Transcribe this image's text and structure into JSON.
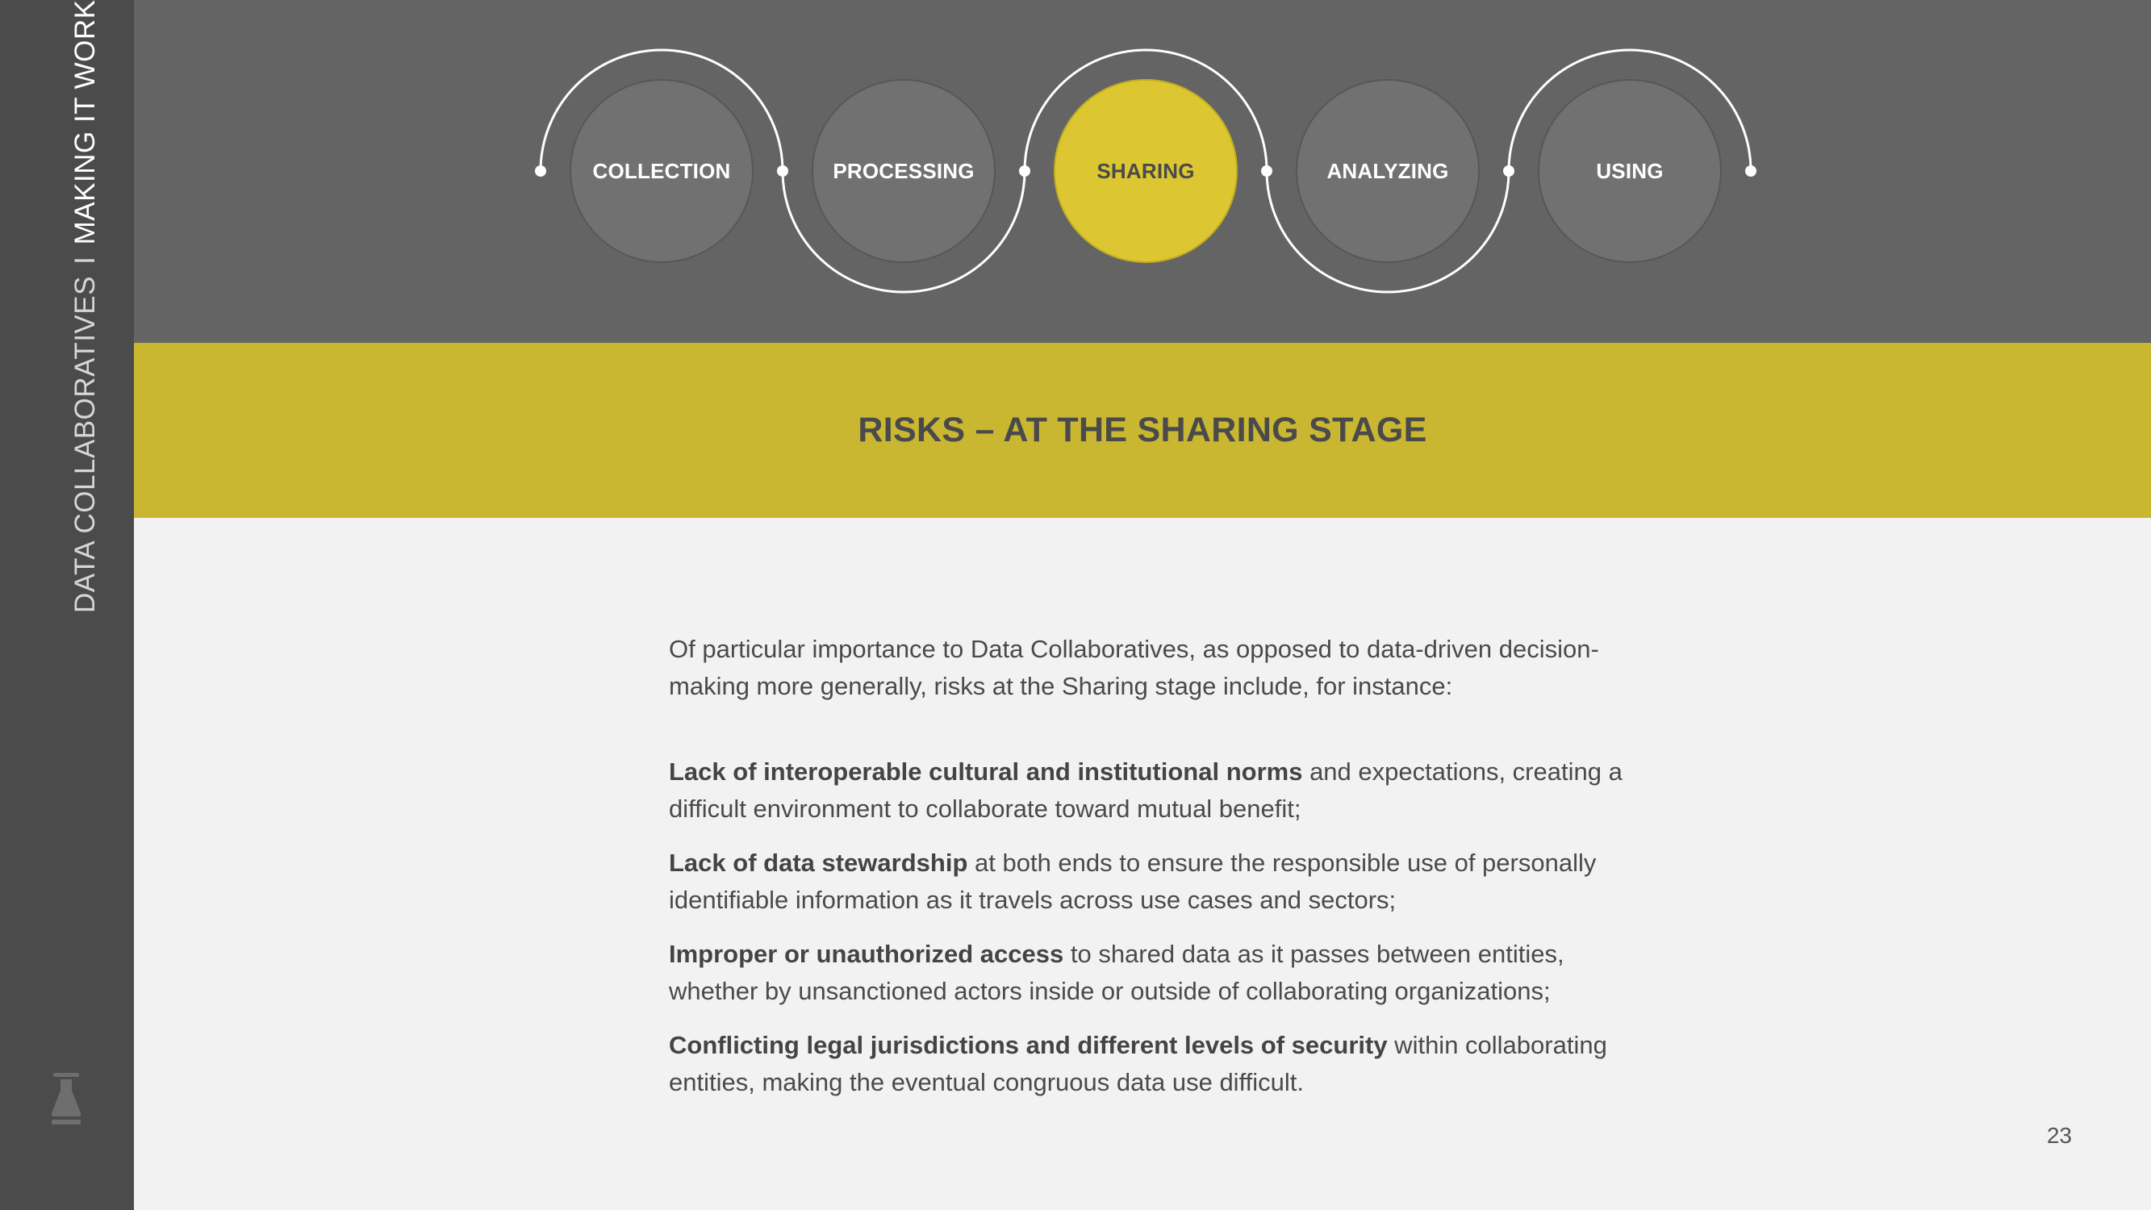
{
  "sidebar": {
    "title_light": "DATA COLLABORATIVES",
    "separator": "I",
    "title_bold": "MAKING IT WORK",
    "logo_icon": "flask-icon"
  },
  "stages": [
    {
      "label": "COLLECTION",
      "active": false
    },
    {
      "label": "PROCESSING",
      "active": false
    },
    {
      "label": "SHARING",
      "active": true
    },
    {
      "label": "ANALYZING",
      "active": false
    },
    {
      "label": "USING",
      "active": false
    }
  ],
  "banner": {
    "title": "RISKS – AT THE SHARING STAGE"
  },
  "content": {
    "intro": "Of particular importance to Data Collaboratives, as opposed to data-driven decision-making more generally, risks at the Sharing stage include, for instance:",
    "risks": [
      {
        "bold": "Lack of interoperable cultural and institutional norms",
        "rest": " and expectations, creating a difficult environment to collaborate toward mutual benefit;"
      },
      {
        "bold": "Lack of data stewardship",
        "rest": " at both ends to ensure the responsible use of personally identifiable information as it travels across use cases and sectors;"
      },
      {
        "bold": "Improper or unauthorized access",
        "rest": " to shared data as it passes between entities, whether by unsanctioned actors inside or outside of collaborating organizations;"
      },
      {
        "bold": "Conflicting legal jurisdictions and different levels of security",
        "rest": " within collaborating entities, making the eventual congruous data use difficult."
      }
    ]
  },
  "page_number": "23",
  "colors": {
    "sidebar": "#4b4b4b",
    "top_band": "#646464",
    "accent_yellow": "#c9b631",
    "active_stage": "#dcc631",
    "background": "#f2f2f2"
  }
}
